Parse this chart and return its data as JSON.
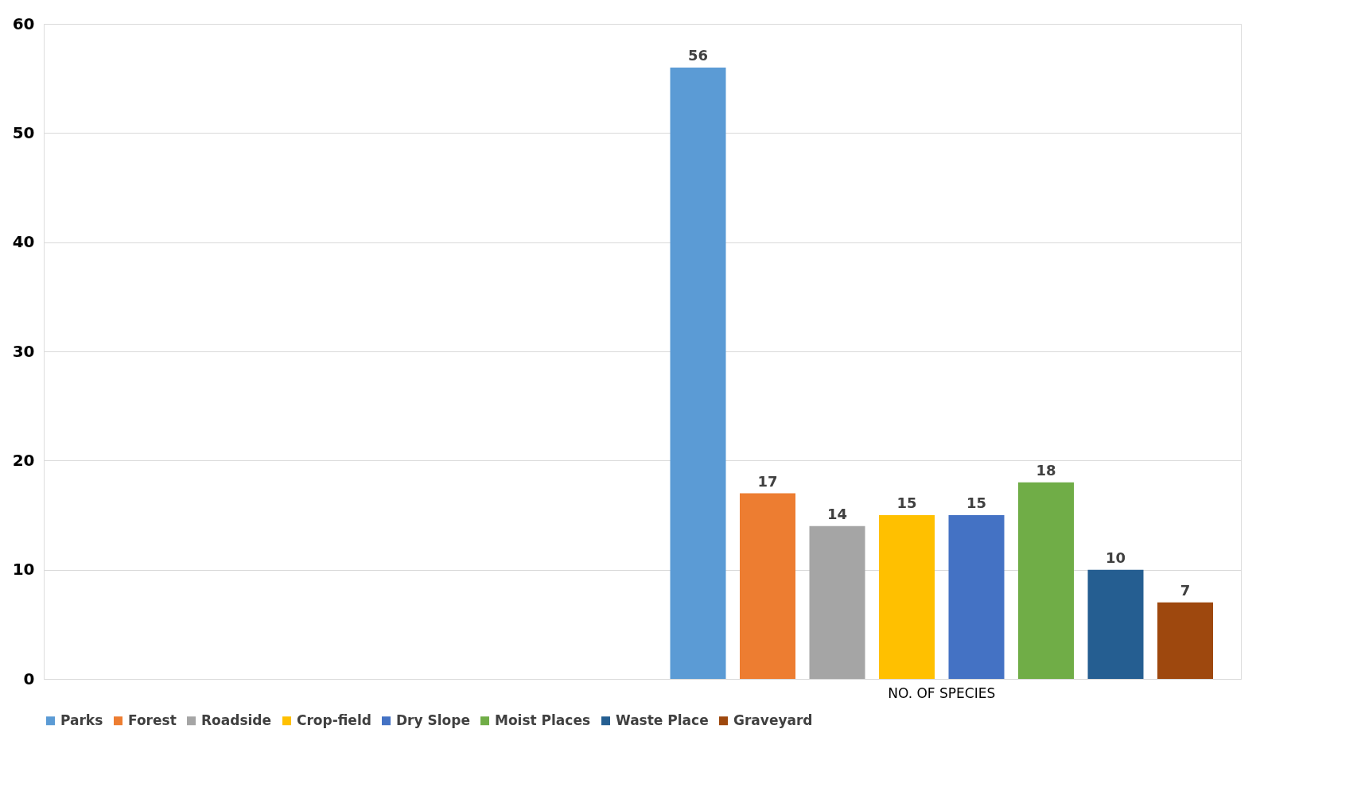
{
  "chart_data": {
    "type": "bar",
    "categories": [
      null,
      "NO. OF SPECIES"
    ],
    "series": [
      {
        "name": "Parks",
        "color": "#5b9bd5",
        "values": [
          null,
          56
        ]
      },
      {
        "name": "Forest",
        "color": "#ed7d31",
        "values": [
          null,
          17
        ]
      },
      {
        "name": "Roadside",
        "color": "#a5a5a5",
        "values": [
          null,
          14
        ]
      },
      {
        "name": "Crop-field",
        "color": "#ffc000",
        "values": [
          null,
          15
        ]
      },
      {
        "name": "Dry Slope",
        "color": "#4472c4",
        "values": [
          null,
          15
        ]
      },
      {
        "name": "Moist Places",
        "color": "#70ad47",
        "values": [
          null,
          18
        ]
      },
      {
        "name": "Waste Place",
        "color": "#255e91",
        "values": [
          null,
          10
        ]
      },
      {
        "name": "Graveyard",
        "color": "#9e480e",
        "values": [
          null,
          7
        ]
      }
    ],
    "ylim": [
      0,
      60
    ],
    "yticks": [
      0,
      10,
      20,
      30,
      40,
      50,
      60
    ],
    "grid": "y",
    "legend": "bottom",
    "data_labels": true
  }
}
